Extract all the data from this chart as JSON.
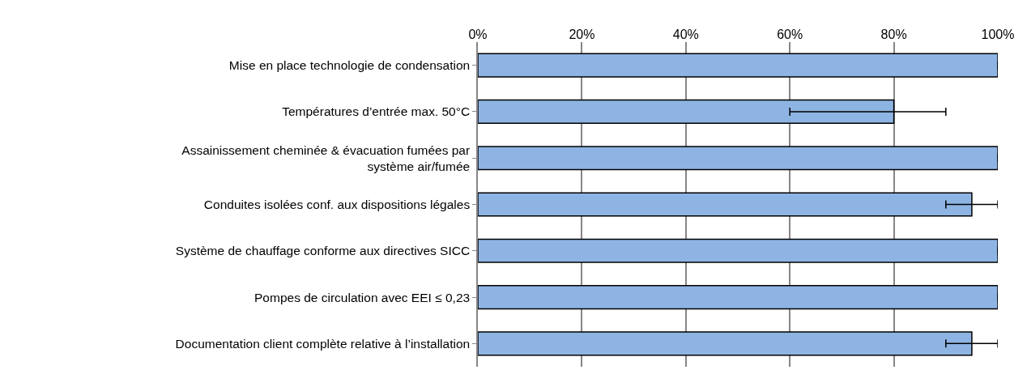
{
  "chart_data": {
    "type": "bar",
    "orientation": "horizontal",
    "categories": [
      "Mise en place technologie de condensation",
      "Températures d’entrée max. 50°C",
      "Assainissement cheminée & évacuation fumées par\nsystème air/fumée",
      "Conduites isolées conf. aux dispositions légales",
      "Système de chauffage conforme aux directives SICC",
      "Pompes de circulation avec EEI ≤ 0,23",
      "Documentation client complète relative à l’installation"
    ],
    "values": [
      100,
      80,
      100,
      95,
      100,
      100,
      95
    ],
    "errors": [
      null,
      [
        60,
        90
      ],
      null,
      [
        90,
        100
      ],
      null,
      null,
      [
        90,
        100
      ]
    ],
    "color": "#8eb4e3",
    "xlim": [
      0,
      100
    ],
    "xticks": [
      {
        "value": 0,
        "label": "0%"
      },
      {
        "value": 20,
        "label": "20%"
      },
      {
        "value": 40,
        "label": "40%"
      },
      {
        "value": 60,
        "label": "60%"
      },
      {
        "value": 80,
        "label": "80%"
      },
      {
        "value": 100,
        "label": "100%"
      }
    ],
    "grid": "x"
  }
}
